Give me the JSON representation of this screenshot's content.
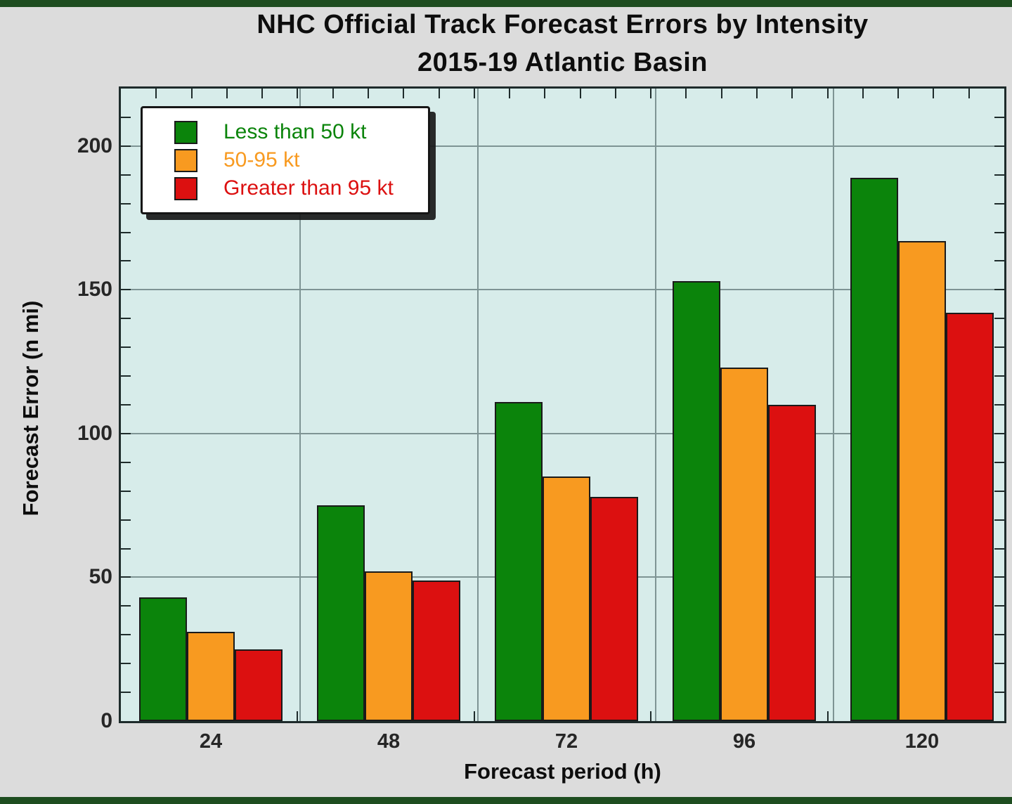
{
  "page": {
    "background": "#DCDCDC",
    "border_strip_color": "#1E4D20"
  },
  "chart_data": {
    "type": "bar",
    "title": "NHC Official Track Forecast Errors by Intensity",
    "subtitle": "2015-19 Atlantic Basin",
    "xlabel": "Forecast period (h)",
    "ylabel": "Forecast Error (n mi)",
    "categories": [
      "24",
      "48",
      "72",
      "96",
      "120"
    ],
    "series": [
      {
        "name": "Less than 50 kt",
        "color": "#0B840B",
        "values": [
          43,
          75,
          111,
          153,
          189
        ]
      },
      {
        "name": "50-95 kt",
        "color": "#F89A20",
        "values": [
          31,
          52,
          85,
          123,
          167
        ]
      },
      {
        "name": "Greater than 95 kt",
        "color": "#DC1010",
        "values": [
          25,
          49,
          78,
          110,
          142
        ]
      }
    ],
    "ylim": [
      0,
      220
    ],
    "yticks": [
      0,
      50,
      100,
      150,
      200
    ],
    "y_minor_step": 10,
    "x_minor_divisions": 25,
    "grid": true,
    "legend_position": "upper-left",
    "plot_bg": "#D7ECEA"
  }
}
